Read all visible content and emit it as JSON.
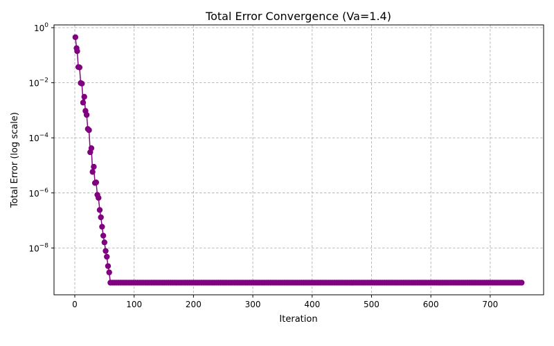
{
  "chart_data": {
    "type": "line",
    "title": "Total Error Convergence (Va=1.4)",
    "xlabel": "Iteration",
    "ylabel": "Total Error (log scale)",
    "xlim": [
      -35,
      790
    ],
    "ylim_log10": [
      -9.7,
      0.1
    ],
    "yscale": "log",
    "grid": true,
    "x_ticks": [
      0,
      100,
      200,
      300,
      400,
      500,
      600,
      700
    ],
    "y_ticks": [
      {
        "exp": 0,
        "base": "10",
        "sup": "0"
      },
      {
        "exp": -2,
        "base": "10",
        "sup": "−2"
      },
      {
        "exp": -4,
        "base": "10",
        "sup": "−4"
      },
      {
        "exp": -6,
        "base": "10",
        "sup": "−6"
      },
      {
        "exp": -8,
        "base": "10",
        "sup": "−8"
      }
    ],
    "line_color": "#7b0a7f",
    "marker_color": "#800080",
    "series": [
      {
        "x": [
          1,
          3,
          4,
          6,
          8,
          10,
          12,
          14,
          16,
          18,
          20,
          22,
          24,
          26,
          28,
          30,
          32,
          34,
          36,
          38,
          40,
          42,
          44,
          46,
          48,
          50,
          52,
          54,
          56,
          58,
          60
        ],
        "y": [
          0.45,
          0.18,
          0.14,
          0.037,
          0.036,
          0.0098,
          0.0093,
          0.0019,
          0.0031,
          0.00095,
          0.00068,
          0.00021,
          0.00019,
          3e-05,
          4.2e-05,
          5.8e-06,
          8.9e-06,
          2.3e-06,
          2.4e-06,
          8.5e-07,
          6.6e-07,
          2.4e-07,
          1.3e-07,
          5.9e-08,
          2.8e-08,
          1.6e-08,
          7.8e-09,
          4.8e-09,
          2.2e-09,
          1.3e-09,
          5.5e-10
        ],
        "plateau": {
          "value": 5.5e-10,
          "x_start": 60,
          "x_end": 753,
          "step": 3.5
        }
      }
    ]
  }
}
